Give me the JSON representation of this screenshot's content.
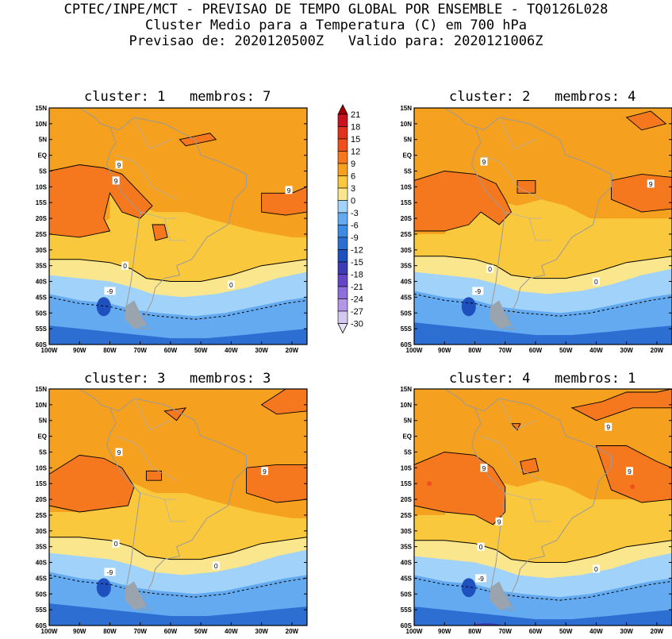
{
  "header": {
    "line1": "CPTEC/INPE/MCT - PREVISAO DE TEMPO GLOBAL POR ENSEMBLE - TQ0126L028",
    "line2": "Cluster Medio para a Temperatura (C) em 700 hPa",
    "line3": "Previsao de: 2020120500Z   Valido para: 2020121006Z"
  },
  "axes": {
    "lat_ticks": [
      "15N",
      "10N",
      "5N",
      "EQ",
      "5S",
      "10S",
      "15S",
      "20S",
      "25S",
      "30S",
      "35S",
      "40S",
      "45S",
      "50S",
      "55S",
      "60S"
    ],
    "lon_ticks": [
      "100W",
      "90W",
      "80W",
      "70W",
      "60W",
      "50W",
      "40W",
      "30W",
      "20W"
    ]
  },
  "colorbar": {
    "levels": [
      "21",
      "18",
      "15",
      "12",
      "9",
      "6",
      "3",
      "0",
      "-3",
      "-6",
      "-9",
      "-12",
      "-15",
      "-18",
      "-21",
      "-24",
      "-27",
      "-30"
    ],
    "colors": [
      "#a50000",
      "#c8141e",
      "#e1321e",
      "#f0501e",
      "#f5781e",
      "#f5a01e",
      "#fac83c",
      "#fae68c",
      "#a0d2fa",
      "#64aaf0",
      "#3c8ce6",
      "#2d6ed2",
      "#1e50be",
      "#3c3cb4",
      "#6446c8",
      "#8c6edc",
      "#b496e6",
      "#d2c8f0",
      "#e6e1f5"
    ]
  },
  "chart_data": [
    {
      "type": "heatmap",
      "title": "cluster: 1   membros: 7",
      "variable": "Temperatura (C) em 700 hPa",
      "lat_range": [
        "15N",
        "60S"
      ],
      "lon_range": [
        "100W",
        "15W"
      ],
      "contour_labels": [
        "9",
        "9",
        "9",
        "0",
        "0",
        "-9"
      ],
      "value_range": [
        -12,
        12
      ]
    },
    {
      "type": "heatmap",
      "title": "cluster: 2   membros: 4",
      "variable": "Temperatura (C) em 700 hPa",
      "lat_range": [
        "15N",
        "60S"
      ],
      "lon_range": [
        "100W",
        "15W"
      ],
      "contour_labels": [
        "9",
        "9",
        "0",
        "0",
        "-9"
      ],
      "value_range": [
        -12,
        12
      ]
    },
    {
      "type": "heatmap",
      "title": "cluster: 3   membros: 3",
      "variable": "Temperatura (C) em 700 hPa",
      "lat_range": [
        "15N",
        "60S"
      ],
      "lon_range": [
        "100W",
        "15W"
      ],
      "contour_labels": [
        "9",
        "9",
        "0",
        "0",
        "-9"
      ],
      "value_range": [
        -12,
        12
      ]
    },
    {
      "type": "heatmap",
      "title": "cluster: 4   membros: 1",
      "variable": "Temperatura (C) em 700 hPa",
      "lat_range": [
        "15N",
        "60S"
      ],
      "lon_range": [
        "100W",
        "15W"
      ],
      "contour_labels": [
        "9",
        "9",
        "9",
        "9",
        "0",
        "0",
        "-9"
      ],
      "value_range": [
        -15,
        12
      ]
    }
  ]
}
